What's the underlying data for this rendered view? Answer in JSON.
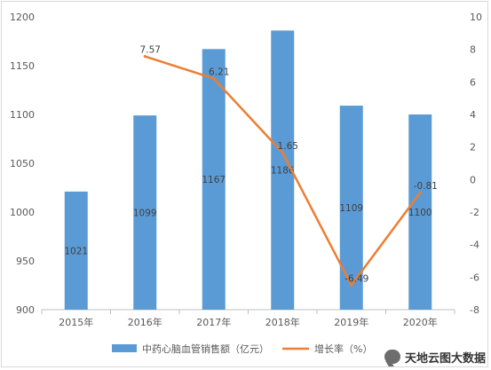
{
  "chart_data": {
    "type": "bar",
    "categories": [
      "2015年",
      "2016年",
      "2017年",
      "2018年",
      "2019年",
      "2020年"
    ],
    "series": [
      {
        "name": "中药心脑血管销售额（亿元）",
        "type": "bar",
        "axis": "left",
        "values": [
          1021,
          1099,
          1167,
          1186,
          1109,
          1100
        ],
        "labels": [
          "1021",
          "1099",
          "1167",
          "1186",
          "1109",
          "1100"
        ],
        "color": "#5b9bd5"
      },
      {
        "name": "增长率（%）",
        "type": "line",
        "axis": "right",
        "values": [
          null,
          7.57,
          6.21,
          1.65,
          -6.49,
          -0.81
        ],
        "labels": [
          "",
          "7.57",
          "6.21",
          "1.65",
          "-6.49",
          "-0.81"
        ],
        "color": "#ed7d31"
      }
    ],
    "y_left": {
      "min": 900,
      "max": 1200,
      "ticks": [
        "900",
        "950",
        "1000",
        "1050",
        "1100",
        "1150",
        "1200"
      ]
    },
    "y_right": {
      "min": -8,
      "max": 10,
      "ticks": [
        "-8",
        "-6",
        "-4",
        "-2",
        "0",
        "2",
        "4",
        "6",
        "8",
        "10"
      ]
    },
    "legend_position": "bottom",
    "legend": [
      "中药心脑血管销售额（亿元）",
      "增长率（%）"
    ],
    "grid": false
  },
  "watermark": {
    "text": "天地云图大数据",
    "icon": "chat-bubble-icon"
  }
}
